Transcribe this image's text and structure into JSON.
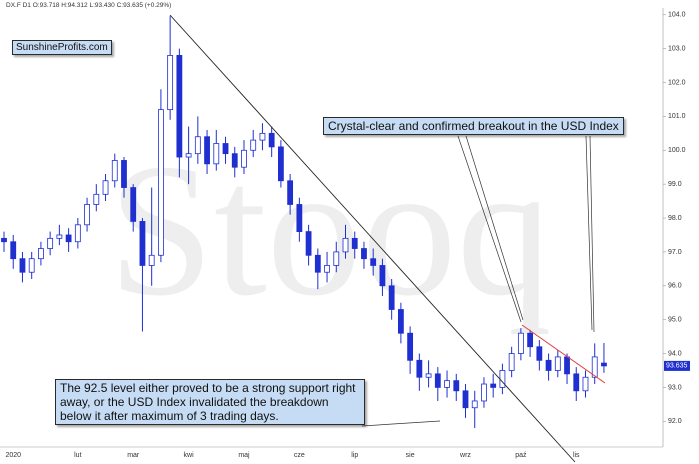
{
  "chart_data": {
    "type": "candlestick",
    "title": "DX.F  D1  O:93.718  H:94.312  L:93.430  C:93.635  (+0.29%)",
    "watermark": "Stooq",
    "brand": "SunshineProfits.com",
    "annotations": [
      "Crystal-clear and confirmed breakout in the USD Index",
      "The 92.5 level either proved to be a strong support right away, or the USD Index invalidated the breakdown below it after maximum of 3 trading days."
    ],
    "up_color": "#ffffff",
    "color": "#1f2fd0",
    "categories": [
      null,
      "2020",
      null,
      null,
      null,
      null,
      null,
      null,
      "lut",
      null,
      null,
      null,
      null,
      null,
      "mar",
      null,
      null,
      null,
      null,
      null,
      "kwi",
      null,
      null,
      null,
      null,
      null,
      "maj",
      null,
      null,
      null,
      null,
      null,
      "cze",
      null,
      null,
      null,
      null,
      null,
      "lip",
      null,
      null,
      null,
      null,
      null,
      "sie",
      null,
      null,
      null,
      null,
      null,
      "wrz",
      null,
      null,
      null,
      null,
      null,
      "paź",
      null,
      null,
      null,
      null,
      null,
      "lis",
      null,
      null,
      null
    ],
    "open": [
      97.4,
      97.3,
      96.8,
      96.4,
      96.8,
      97.1,
      97.4,
      97.5,
      97.3,
      97.8,
      98.4,
      98.7,
      99.1,
      99.7,
      98.9,
      97.9,
      96.6,
      96.9,
      101.2,
      102.8,
      99.8,
      99.9,
      100.4,
      99.6,
      100.2,
      99.9,
      99.5,
      100.0,
      100.3,
      100.5,
      100.1,
      99.1,
      98.4,
      97.6,
      96.9,
      96.4,
      96.6,
      97.0,
      97.4,
      97.1,
      96.8,
      96.6,
      96.0,
      95.3,
      94.6,
      93.8,
      93.3,
      93.4,
      93.0,
      93.2,
      92.9,
      92.4,
      92.6,
      93.1,
      93.0,
      93.5,
      94.0,
      94.6,
      94.2,
      93.8,
      93.5,
      93.9,
      93.4,
      92.9,
      93.3,
      93.718
    ],
    "high": [
      97.6,
      97.5,
      97.0,
      97.0,
      97.3,
      97.6,
      97.8,
      97.7,
      98.0,
      98.6,
      99.0,
      99.3,
      99.9,
      99.8,
      99.0,
      98.0,
      98.9,
      101.8,
      103.96,
      103.0,
      100.7,
      101.0,
      100.6,
      100.6,
      100.4,
      100.1,
      100.3,
      100.6,
      100.8,
      100.7,
      100.3,
      99.3,
      98.6,
      97.8,
      97.1,
      97.0,
      97.3,
      97.8,
      97.6,
      97.3,
      97.1,
      96.8,
      96.2,
      95.5,
      94.8,
      94.0,
      93.8,
      93.6,
      93.5,
      93.4,
      93.1,
      92.9,
      93.3,
      93.4,
      93.7,
      94.2,
      94.75,
      94.7,
      94.4,
      94.0,
      94.1,
      94.0,
      93.6,
      93.5,
      94.3,
      94.312
    ],
    "low": [
      97.0,
      96.5,
      96.1,
      96.2,
      96.6,
      96.9,
      97.2,
      97.0,
      97.1,
      97.6,
      98.2,
      98.5,
      98.9,
      98.6,
      97.6,
      94.65,
      96.0,
      96.7,
      100.9,
      99.2,
      99.0,
      99.6,
      99.3,
      99.4,
      99.6,
      99.2,
      99.3,
      99.8,
      100.0,
      99.8,
      98.9,
      98.1,
      97.3,
      96.6,
      95.9,
      96.1,
      96.4,
      96.8,
      96.8,
      96.5,
      96.3,
      95.7,
      95.0,
      94.3,
      93.4,
      92.9,
      93.0,
      92.6,
      92.7,
      92.6,
      92.1,
      91.8,
      92.4,
      92.7,
      92.8,
      93.3,
      93.8,
      93.9,
      93.5,
      93.2,
      93.3,
      93.1,
      92.6,
      92.7,
      93.1,
      93.43
    ],
    "close": [
      97.3,
      96.8,
      96.4,
      96.8,
      97.1,
      97.4,
      97.5,
      97.3,
      97.8,
      98.4,
      98.7,
      99.1,
      99.7,
      98.9,
      97.9,
      96.6,
      96.9,
      101.2,
      102.8,
      99.8,
      99.9,
      100.4,
      99.6,
      100.2,
      99.9,
      99.5,
      100.0,
      100.3,
      100.5,
      100.1,
      99.1,
      98.4,
      97.6,
      96.9,
      96.4,
      96.6,
      97.0,
      97.4,
      97.1,
      96.8,
      96.6,
      96.0,
      95.3,
      94.6,
      93.8,
      93.3,
      93.4,
      93.0,
      93.2,
      92.9,
      92.4,
      92.6,
      93.1,
      93.0,
      93.5,
      94.0,
      94.6,
      94.2,
      93.8,
      93.5,
      93.9,
      93.4,
      92.9,
      93.3,
      93.9,
      93.635
    ],
    "ylim": [
      91.3,
      104.2
    ],
    "yticks": [
      {
        "value": 92,
        "label": "92.0"
      },
      {
        "value": 93,
        "label": "93.0"
      },
      {
        "value": 94,
        "label": "94.0"
      },
      {
        "value": 95,
        "label": "95.0"
      },
      {
        "value": 96,
        "label": "96.0"
      },
      {
        "value": 97,
        "label": "97.0"
      },
      {
        "value": 98,
        "label": "98.0"
      },
      {
        "value": 99,
        "label": "99.0"
      },
      {
        "value": 100,
        "label": "100.0"
      },
      {
        "value": 101,
        "label": "101.0"
      },
      {
        "value": 102,
        "label": "102.0"
      },
      {
        "value": 103,
        "label": "103.0"
      },
      {
        "value": 104,
        "label": "104.0"
      }
    ],
    "grid": false
  }
}
